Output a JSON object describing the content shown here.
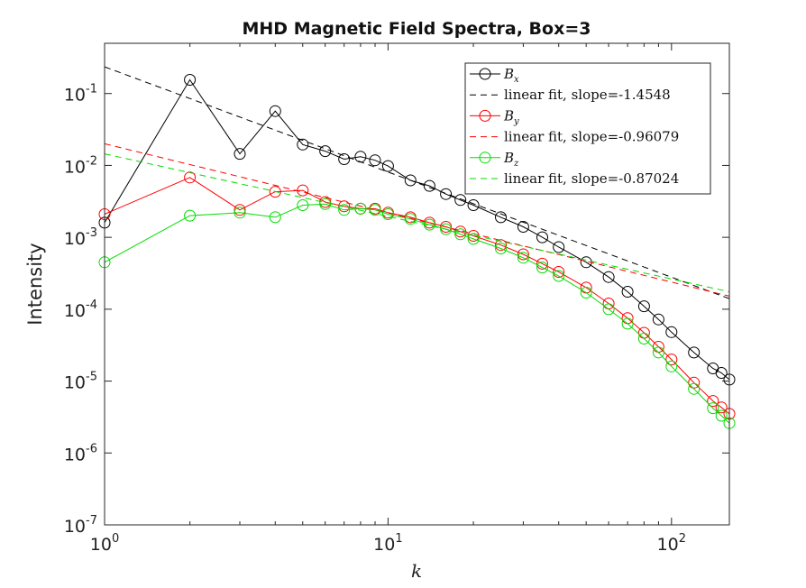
{
  "chart_data": {
    "type": "line",
    "title": "MHD Magnetic Field Spectra, Box=3",
    "xlabel": "k",
    "ylabel": "Intensity",
    "xscale": "log",
    "yscale": "log",
    "xlim": [
      1,
      160
    ],
    "ylim": [
      1e-07,
      0.5
    ],
    "x_ticks": [
      {
        "base": "10",
        "exp": "0"
      },
      {
        "base": "10",
        "exp": "1"
      },
      {
        "base": "10",
        "exp": "2"
      }
    ],
    "y_ticks": [
      {
        "base": "10",
        "exp": "-7"
      },
      {
        "base": "10",
        "exp": "-6"
      },
      {
        "base": "10",
        "exp": "-5"
      },
      {
        "base": "10",
        "exp": "-4"
      },
      {
        "base": "10",
        "exp": "-3"
      },
      {
        "base": "10",
        "exp": "-2"
      },
      {
        "base": "10",
        "exp": "-1"
      }
    ],
    "grid": false,
    "legend_position": "top-right",
    "series": [
      {
        "name": "B_x",
        "label_main": "B",
        "label_sub": "x",
        "color": "#000000",
        "marker": "circle",
        "points": [
          [
            1,
            0.0016
          ],
          [
            2,
            0.155
          ],
          [
            3,
            0.0145
          ],
          [
            4,
            0.057
          ],
          [
            5,
            0.0195
          ],
          [
            6,
            0.0158
          ],
          [
            7,
            0.0122
          ],
          [
            8,
            0.0132
          ],
          [
            9,
            0.0118
          ],
          [
            10,
            0.0098
          ],
          [
            12,
            0.0062
          ],
          [
            14,
            0.0052
          ],
          [
            16,
            0.004
          ],
          [
            18,
            0.0033
          ],
          [
            20,
            0.0028
          ],
          [
            25,
            0.0019
          ],
          [
            30,
            0.0014
          ],
          [
            35,
            0.001
          ],
          [
            40,
            0.00073
          ],
          [
            50,
            0.00045
          ],
          [
            60,
            0.00028
          ],
          [
            70,
            0.000175
          ],
          [
            80,
            0.00011
          ],
          [
            90,
            7.2e-05
          ],
          [
            100,
            4.8e-05
          ],
          [
            120,
            2.5e-05
          ],
          [
            140,
            1.5e-05
          ],
          [
            150,
            1.3e-05
          ],
          [
            160,
            1.05e-05
          ]
        ]
      },
      {
        "name": "linear fit, slope=-1.4548",
        "color": "#000000",
        "dashed": true,
        "points": [
          [
            1,
            0.235
          ],
          [
            160,
            0.00014
          ]
        ]
      },
      {
        "name": "B_y",
        "label_main": "B",
        "label_sub": "y",
        "color": "#ff0000",
        "marker": "circle",
        "points": [
          [
            1,
            0.0021
          ],
          [
            2,
            0.0068
          ],
          [
            3,
            0.0024
          ],
          [
            4,
            0.0043
          ],
          [
            5,
            0.0045
          ],
          [
            6,
            0.0031
          ],
          [
            7,
            0.0027
          ],
          [
            8,
            0.0025
          ],
          [
            9,
            0.0025
          ],
          [
            10,
            0.0022
          ],
          [
            12,
            0.0019
          ],
          [
            14,
            0.0016
          ],
          [
            16,
            0.0014
          ],
          [
            18,
            0.0012
          ],
          [
            20,
            0.00105
          ],
          [
            25,
            0.00078
          ],
          [
            30,
            0.00058
          ],
          [
            35,
            0.00043
          ],
          [
            40,
            0.00033
          ],
          [
            50,
            0.0002
          ],
          [
            60,
            0.00012
          ],
          [
            70,
            7.5e-05
          ],
          [
            80,
            4.7e-05
          ],
          [
            90,
            3e-05
          ],
          [
            100,
            2e-05
          ],
          [
            120,
            9.5e-06
          ],
          [
            140,
            5.3e-06
          ],
          [
            150,
            4.3e-06
          ],
          [
            160,
            3.5e-06
          ]
        ]
      },
      {
        "name": "linear fit, slope=-0.96079",
        "color": "#ff0000",
        "dashed": true,
        "points": [
          [
            1,
            0.02
          ],
          [
            160,
            0.000152
          ]
        ]
      },
      {
        "name": "B_z",
        "label_main": "B",
        "label_sub": "z",
        "color": "#00dd00",
        "marker": "circle",
        "points": [
          [
            1,
            0.00045
          ],
          [
            2,
            0.002
          ],
          [
            3,
            0.0022
          ],
          [
            4,
            0.0019
          ],
          [
            5,
            0.0028
          ],
          [
            6,
            0.0029
          ],
          [
            7,
            0.0024
          ],
          [
            8,
            0.0025
          ],
          [
            9,
            0.0024
          ],
          [
            10,
            0.0021
          ],
          [
            12,
            0.0018
          ],
          [
            14,
            0.0015
          ],
          [
            16,
            0.0013
          ],
          [
            18,
            0.0011
          ],
          [
            20,
            0.00095
          ],
          [
            25,
            0.0007
          ],
          [
            30,
            0.00052
          ],
          [
            35,
            0.00038
          ],
          [
            40,
            0.00029
          ],
          [
            50,
            0.00017
          ],
          [
            60,
            0.0001
          ],
          [
            70,
            6.3e-05
          ],
          [
            80,
            3.9e-05
          ],
          [
            90,
            2.5e-05
          ],
          [
            100,
            1.6e-05
          ],
          [
            120,
            7.8e-06
          ],
          [
            140,
            4.2e-06
          ],
          [
            150,
            3.3e-06
          ],
          [
            160,
            2.6e-06
          ]
        ]
      },
      {
        "name": "linear fit, slope=-0.87024",
        "color": "#00dd00",
        "dashed": true,
        "points": [
          [
            1,
            0.0145
          ],
          [
            160,
            0.000175
          ]
        ]
      }
    ]
  }
}
